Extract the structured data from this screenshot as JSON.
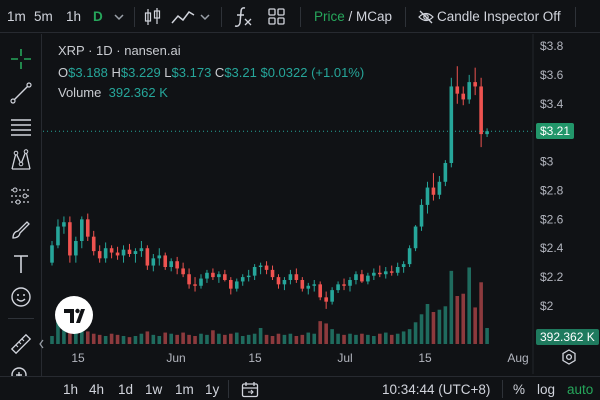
{
  "toolbar": {
    "intervals": [
      "1m",
      "5m",
      "1h",
      "D"
    ],
    "active_interval": "D",
    "price_mcap": {
      "price": "Price",
      "sep": " / ",
      "mcap": "MCap"
    },
    "candle_inspector": "Candle Inspector Off"
  },
  "legend": {
    "title": "XRP · 1D · nansen.ai",
    "ohlc": [
      {
        "k": "O",
        "v": "$3.188"
      },
      {
        "k": "H",
        "v": "$3.229"
      },
      {
        "k": "L",
        "v": "$3.173"
      },
      {
        "k": "C",
        "v": "$3.21"
      }
    ],
    "change": "$0.0322 (+1.01%)",
    "volume_label": "Volume",
    "volume_value": "392.362 K"
  },
  "badges": {
    "price": "$3.21",
    "volume": "392.362 K"
  },
  "colors": {
    "up": "#26a69a",
    "down": "#ef5350",
    "up_vol": "#1f6b5e",
    "down_vol": "#8d3a3d",
    "accent": "#26a65b",
    "bg": "#101215"
  },
  "bottombar": {
    "ranges": [
      "1h",
      "4h",
      "1d",
      "1w",
      "1m",
      "1y"
    ],
    "time": "10:34:44 (UTC+8)",
    "percent": "%",
    "log": "log",
    "auto": "auto"
  },
  "icons": [
    "chevron-down-icon",
    "candles-icon",
    "line-chart-icon",
    "function-icon",
    "grid-icon",
    "eye-off-icon",
    "crosshair-icon",
    "trend-line-icon",
    "fib-icon",
    "pattern-icon",
    "forecast-icon",
    "brush-icon",
    "text-icon",
    "emoji-icon",
    "ruler-icon",
    "zoom-icon",
    "calendar-icon",
    "settings-icon",
    "tradingview-logo-icon"
  ],
  "chart_data": {
    "type": "candlestick",
    "y_ticks": [
      "$3.8",
      "$3.6",
      "$3.4",
      "$3.2",
      "$3",
      "$2.8",
      "$2.6",
      "$2.4",
      "$2.2",
      "$2"
    ],
    "x_ticks": [
      "15",
      "Jun",
      "15",
      "Jul",
      "15",
      "Aug"
    ],
    "ylim": [
      1.8,
      3.85
    ],
    "last_price": 3.21,
    "candles": [
      [
        2.3,
        2.45,
        2.28,
        2.42
      ],
      [
        2.42,
        2.6,
        2.4,
        2.55
      ],
      [
        2.55,
        2.62,
        2.5,
        2.58
      ],
      [
        2.58,
        2.62,
        2.3,
        2.35
      ],
      [
        2.35,
        2.48,
        2.3,
        2.45
      ],
      [
        2.45,
        2.62,
        2.4,
        2.6
      ],
      [
        2.6,
        2.64,
        2.45,
        2.48
      ],
      [
        2.48,
        2.52,
        2.35,
        2.38
      ],
      [
        2.38,
        2.42,
        2.3,
        2.33
      ],
      [
        2.33,
        2.44,
        2.3,
        2.4
      ],
      [
        2.4,
        2.42,
        2.33,
        2.37
      ],
      [
        2.37,
        2.41,
        2.32,
        2.35
      ],
      [
        2.35,
        2.42,
        2.3,
        2.39
      ],
      [
        2.39,
        2.43,
        2.34,
        2.36
      ],
      [
        2.36,
        2.4,
        2.3,
        2.38
      ],
      [
        2.38,
        2.45,
        2.34,
        2.4
      ],
      [
        2.4,
        2.42,
        2.25,
        2.28
      ],
      [
        2.28,
        2.36,
        2.24,
        2.33
      ],
      [
        2.33,
        2.4,
        2.28,
        2.35
      ],
      [
        2.35,
        2.37,
        2.25,
        2.27
      ],
      [
        2.27,
        2.33,
        2.24,
        2.31
      ],
      [
        2.31,
        2.34,
        2.22,
        2.26
      ],
      [
        2.26,
        2.3,
        2.2,
        2.22
      ],
      [
        2.22,
        2.26,
        2.12,
        2.15
      ],
      [
        2.15,
        2.2,
        2.1,
        2.14
      ],
      [
        2.14,
        2.22,
        2.12,
        2.19
      ],
      [
        2.19,
        2.25,
        2.16,
        2.23
      ],
      [
        2.23,
        2.26,
        2.18,
        2.2
      ],
      [
        2.2,
        2.24,
        2.16,
        2.22
      ],
      [
        2.22,
        2.25,
        2.17,
        2.18
      ],
      [
        2.18,
        2.2,
        2.08,
        2.12
      ],
      [
        2.12,
        2.19,
        2.1,
        2.17
      ],
      [
        2.17,
        2.22,
        2.14,
        2.2
      ],
      [
        2.2,
        2.25,
        2.17,
        2.21
      ],
      [
        2.21,
        2.29,
        2.18,
        2.27
      ],
      [
        2.27,
        2.3,
        2.22,
        2.28
      ],
      [
        2.28,
        2.31,
        2.22,
        2.25
      ],
      [
        2.25,
        2.28,
        2.18,
        2.2
      ],
      [
        2.2,
        2.22,
        2.12,
        2.15
      ],
      [
        2.15,
        2.2,
        2.11,
        2.18
      ],
      [
        2.18,
        2.25,
        2.15,
        2.22
      ],
      [
        2.22,
        2.26,
        2.16,
        2.18
      ],
      [
        2.18,
        2.2,
        2.1,
        2.12
      ],
      [
        2.12,
        2.16,
        2.08,
        2.14
      ],
      [
        2.14,
        2.18,
        2.1,
        2.15
      ],
      [
        2.15,
        2.17,
        2.04,
        2.06
      ],
      [
        2.06,
        2.1,
        1.98,
        2.03
      ],
      [
        2.03,
        2.13,
        2.01,
        2.11
      ],
      [
        2.11,
        2.17,
        2.09,
        2.15
      ],
      [
        2.15,
        2.19,
        2.11,
        2.14
      ],
      [
        2.14,
        2.2,
        2.1,
        2.18
      ],
      [
        2.18,
        2.24,
        2.15,
        2.22
      ],
      [
        2.22,
        2.25,
        2.16,
        2.17
      ],
      [
        2.17,
        2.23,
        2.15,
        2.21
      ],
      [
        2.21,
        2.26,
        2.18,
        2.23
      ],
      [
        2.23,
        2.28,
        2.2,
        2.22
      ],
      [
        2.22,
        2.27,
        2.19,
        2.24
      ],
      [
        2.24,
        2.28,
        2.21,
        2.23
      ],
      [
        2.23,
        2.3,
        2.21,
        2.27
      ],
      [
        2.27,
        2.31,
        2.23,
        2.29
      ],
      [
        2.29,
        2.42,
        2.27,
        2.4
      ],
      [
        2.4,
        2.56,
        2.38,
        2.55
      ],
      [
        2.55,
        2.74,
        2.52,
        2.7
      ],
      [
        2.7,
        2.86,
        2.64,
        2.82
      ],
      [
        2.82,
        2.92,
        2.73,
        2.77
      ],
      [
        2.77,
        2.9,
        2.74,
        2.86
      ],
      [
        2.86,
        3.01,
        2.83,
        2.99
      ],
      [
        2.99,
        3.58,
        2.96,
        3.52
      ],
      [
        3.52,
        3.66,
        3.4,
        3.47
      ],
      [
        3.47,
        3.52,
        3.39,
        3.43
      ],
      [
        3.43,
        3.6,
        3.4,
        3.55
      ],
      [
        3.55,
        3.65,
        3.46,
        3.52
      ],
      [
        3.52,
        3.58,
        3.1,
        3.19
      ],
      [
        3.19,
        3.23,
        3.17,
        3.21
      ]
    ],
    "volumes": [
      7,
      20,
      34,
      14,
      10,
      18,
      11,
      9,
      8,
      7,
      9,
      8,
      7,
      6,
      7,
      9,
      11,
      8,
      7,
      10,
      9,
      8,
      10,
      8,
      7,
      9,
      8,
      12,
      9,
      8,
      9,
      10,
      7,
      8,
      9,
      14,
      8,
      7,
      9,
      8,
      9,
      7,
      8,
      10,
      9,
      20,
      18,
      13,
      9,
      8,
      9,
      8,
      9,
      8,
      7,
      9,
      10,
      8,
      9,
      11,
      13,
      19,
      26,
      35,
      28,
      30,
      33,
      64,
      42,
      44,
      67,
      32,
      54,
      14
    ]
  }
}
